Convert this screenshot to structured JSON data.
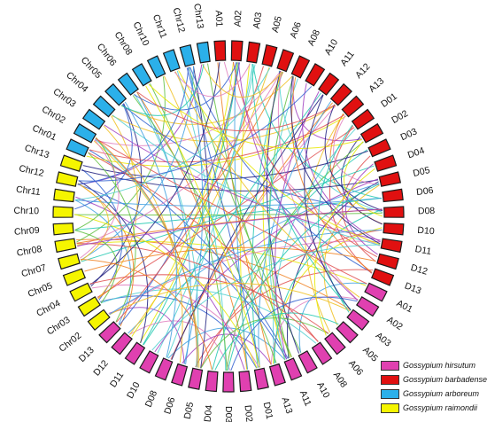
{
  "species": [
    {
      "key": "hirsutum",
      "name": "Gossypium hirsutum",
      "color": "#e040b0"
    },
    {
      "key": "barbadense",
      "name": "Gossypium barbadense",
      "color": "#e01010"
    },
    {
      "key": "arboreum",
      "name": "Gossypium arboreum",
      "color": "#2bb0ea"
    },
    {
      "key": "raimondii",
      "name": "Gossypium raimondii",
      "color": "#f5f500"
    }
  ],
  "chromosomes": [
    {
      "label": "A02",
      "species": "barbadense"
    },
    {
      "label": "A03",
      "species": "barbadense"
    },
    {
      "label": "A05",
      "species": "barbadense"
    },
    {
      "label": "A06",
      "species": "barbadense"
    },
    {
      "label": "A08",
      "species": "barbadense"
    },
    {
      "label": "A10",
      "species": "barbadense"
    },
    {
      "label": "A11",
      "species": "barbadense"
    },
    {
      "label": "A12",
      "species": "barbadense"
    },
    {
      "label": "A13",
      "species": "barbadense"
    },
    {
      "label": "D01",
      "species": "barbadense"
    },
    {
      "label": "D02",
      "species": "barbadense"
    },
    {
      "label": "D03",
      "species": "barbadense"
    },
    {
      "label": "D04",
      "species": "barbadense"
    },
    {
      "label": "D05",
      "species": "barbadense"
    },
    {
      "label": "D06",
      "species": "barbadense"
    },
    {
      "label": "D08",
      "species": "barbadense"
    },
    {
      "label": "D10",
      "species": "barbadense"
    },
    {
      "label": "D11",
      "species": "barbadense"
    },
    {
      "label": "D12",
      "species": "barbadense"
    },
    {
      "label": "D13",
      "species": "barbadense"
    },
    {
      "label": "A01",
      "species": "hirsutum"
    },
    {
      "label": "A02",
      "species": "hirsutum"
    },
    {
      "label": "A03",
      "species": "hirsutum"
    },
    {
      "label": "A05",
      "species": "hirsutum"
    },
    {
      "label": "A06",
      "species": "hirsutum"
    },
    {
      "label": "A08",
      "species": "hirsutum"
    },
    {
      "label": "A10",
      "species": "hirsutum"
    },
    {
      "label": "A11",
      "species": "hirsutum"
    },
    {
      "label": "A13",
      "species": "hirsutum"
    },
    {
      "label": "D01",
      "species": "hirsutum"
    },
    {
      "label": "D02",
      "species": "hirsutum"
    },
    {
      "label": "D03",
      "species": "hirsutum"
    },
    {
      "label": "D04",
      "species": "hirsutum"
    },
    {
      "label": "D05",
      "species": "hirsutum"
    },
    {
      "label": "D06",
      "species": "hirsutum"
    },
    {
      "label": "D08",
      "species": "hirsutum"
    },
    {
      "label": "D10",
      "species": "hirsutum"
    },
    {
      "label": "D11",
      "species": "hirsutum"
    },
    {
      "label": "D12",
      "species": "hirsutum"
    },
    {
      "label": "D13",
      "species": "hirsutum"
    },
    {
      "label": "Chr02",
      "species": "raimondii"
    },
    {
      "label": "Chr03",
      "species": "raimondii"
    },
    {
      "label": "Chr04",
      "species": "raimondii"
    },
    {
      "label": "Chr05",
      "species": "raimondii"
    },
    {
      "label": "Chr07",
      "species": "raimondii"
    },
    {
      "label": "Chr08",
      "species": "raimondii"
    },
    {
      "label": "Chr09",
      "species": "raimondii"
    },
    {
      "label": "Chr10",
      "species": "raimondii"
    },
    {
      "label": "Chr11",
      "species": "raimondii"
    },
    {
      "label": "Chr12",
      "species": "raimondii"
    },
    {
      "label": "Chr13",
      "species": "raimondii"
    },
    {
      "label": "Chr01",
      "species": "arboreum"
    },
    {
      "label": "Chr02",
      "species": "arboreum"
    },
    {
      "label": "Chr03",
      "species": "arboreum"
    },
    {
      "label": "Chr04",
      "species": "arboreum"
    },
    {
      "label": "Chr05",
      "species": "arboreum"
    },
    {
      "label": "Chr06",
      "species": "arboreum"
    },
    {
      "label": "Chr08",
      "species": "arboreum"
    },
    {
      "label": "Chr10",
      "species": "arboreum"
    },
    {
      "label": "Chr11",
      "species": "arboreum"
    },
    {
      "label": "Chr12",
      "species": "arboreum"
    },
    {
      "label": "Chr13",
      "species": "arboreum"
    },
    {
      "label": "A01",
      "species": "barbadense"
    }
  ],
  "link_colors": [
    "#e8e800",
    "#f0c020",
    "#20c8b0",
    "#3060d0",
    "#202080",
    "#e05050",
    "#e080c0",
    "#60c040",
    "#a040c0",
    "#40a0e0",
    "#f08020",
    "#50d0d0"
  ]
}
